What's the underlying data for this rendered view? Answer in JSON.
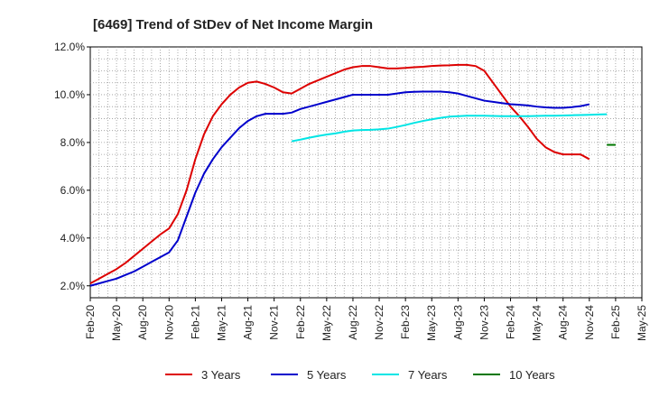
{
  "chart_data": {
    "type": "line",
    "title": "[6469]  Trend of StDev of Net Income Margin",
    "xlabel": "",
    "ylabel": "",
    "ylim": [
      1.5,
      12.0
    ],
    "grid": true,
    "legend_position": "bottom",
    "y_ticks": [
      "2.0%",
      "4.0%",
      "6.0%",
      "8.0%",
      "10.0%",
      "12.0%"
    ],
    "y_tick_values": [
      2,
      4,
      6,
      8,
      10,
      12
    ],
    "x_ticks": [
      "Feb-20",
      "May-20",
      "Aug-20",
      "Nov-20",
      "Feb-21",
      "May-21",
      "Aug-21",
      "Nov-21",
      "Feb-22",
      "May-22",
      "Aug-22",
      "Nov-22",
      "Feb-23",
      "May-23",
      "Aug-23",
      "Nov-23",
      "Feb-24",
      "May-24",
      "Aug-24",
      "Nov-24",
      "Feb-25",
      "May-25"
    ],
    "x_start": "Feb-20",
    "series": [
      {
        "name": "3 Years",
        "color": "#dd0000",
        "start": "Feb-20",
        "values": [
          2.1,
          2.3,
          2.5,
          2.7,
          2.95,
          3.25,
          3.55,
          3.85,
          4.15,
          4.4,
          5.0,
          6.0,
          7.3,
          8.35,
          9.1,
          9.6,
          10.0,
          10.3,
          10.5,
          10.55,
          10.45,
          10.3,
          10.1,
          10.05,
          10.25,
          10.45,
          10.6,
          10.75,
          10.9,
          11.05,
          11.15,
          11.2,
          11.2,
          11.15,
          11.1,
          11.1,
          11.12,
          11.15,
          11.17,
          11.2,
          11.22,
          11.23,
          11.25,
          11.25,
          11.2,
          11.0,
          10.5,
          10.0,
          9.5,
          9.1,
          8.65,
          8.15,
          7.8,
          7.6,
          7.5,
          7.5,
          7.5,
          7.3
        ]
      },
      {
        "name": "5 Years",
        "color": "#0000cc",
        "start": "Feb-20",
        "values": [
          2.0,
          2.1,
          2.2,
          2.3,
          2.45,
          2.6,
          2.8,
          3.0,
          3.2,
          3.4,
          3.9,
          4.9,
          5.9,
          6.7,
          7.3,
          7.8,
          8.2,
          8.6,
          8.9,
          9.1,
          9.2,
          9.2,
          9.2,
          9.25,
          9.4,
          9.5,
          9.6,
          9.7,
          9.8,
          9.9,
          10.0,
          10.0,
          10.0,
          10.0,
          10.0,
          10.05,
          10.1,
          10.12,
          10.13,
          10.13,
          10.13,
          10.1,
          10.05,
          9.95,
          9.85,
          9.75,
          9.7,
          9.65,
          9.6,
          9.58,
          9.55,
          9.5,
          9.47,
          9.45,
          9.45,
          9.48,
          9.52,
          9.6
        ]
      },
      {
        "name": "7 Years",
        "color": "#00e5e5",
        "start": "Jan-22",
        "values": [
          8.05,
          8.12,
          8.2,
          8.27,
          8.33,
          8.38,
          8.45,
          8.5,
          8.52,
          8.53,
          8.55,
          8.58,
          8.65,
          8.73,
          8.82,
          8.9,
          8.97,
          9.03,
          9.08,
          9.1,
          9.12,
          9.12,
          9.12,
          9.11,
          9.1,
          9.1,
          9.1,
          9.1,
          9.11,
          9.12,
          9.12,
          9.13,
          9.14,
          9.15,
          9.16,
          9.17,
          9.18
        ]
      },
      {
        "name": "10 Years",
        "color": "#007700",
        "start": "Jan-25",
        "values": [
          7.9,
          7.9
        ]
      }
    ]
  }
}
